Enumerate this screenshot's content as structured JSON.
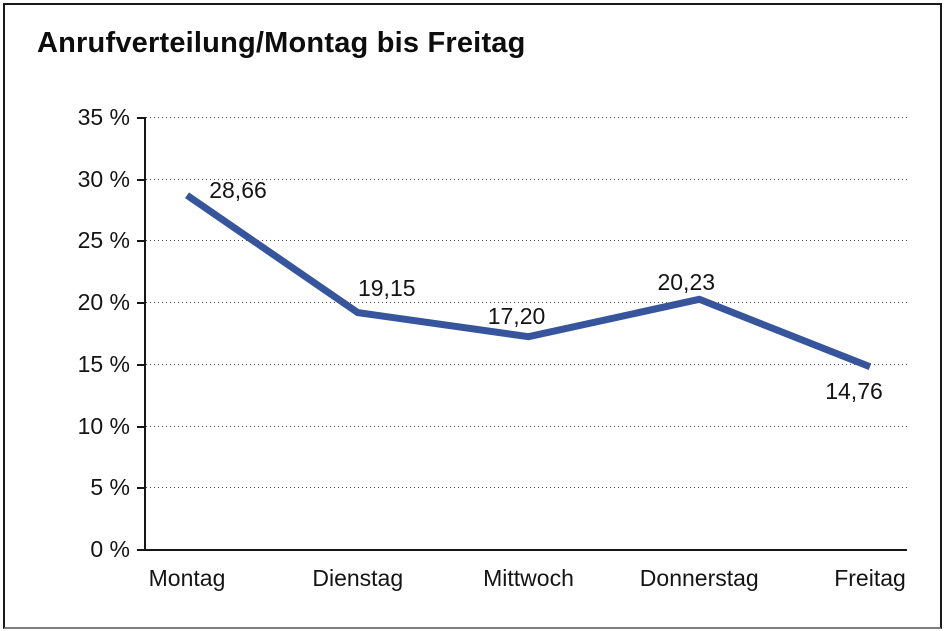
{
  "title": "Anrufverteilung/Montag bis Freitag",
  "chart_data": {
    "type": "line",
    "title": "Anrufverteilung/Montag bis Freitag",
    "categories": [
      "Montag",
      "Dienstag",
      "Mittwoch",
      "Donnerstag",
      "Freitag"
    ],
    "values": [
      28.66,
      19.15,
      17.2,
      20.23,
      14.76
    ],
    "value_labels": [
      "28,66",
      "19,15",
      "17,20",
      "20,23",
      "14,76"
    ],
    "xlabel": "",
    "ylabel": "",
    "ylim": [
      0,
      35
    ],
    "y_tick_step": 5,
    "y_tick_labels": [
      "35 %",
      "30 %",
      "25 %",
      "20 %",
      "15 %",
      "10 %",
      "5 %",
      "0 %"
    ],
    "grid": "horizontal-dotted",
    "legend": "none",
    "line_color": "#36559C",
    "grid_dot_color": "#4d4d4d",
    "axis_color": "#161616"
  }
}
